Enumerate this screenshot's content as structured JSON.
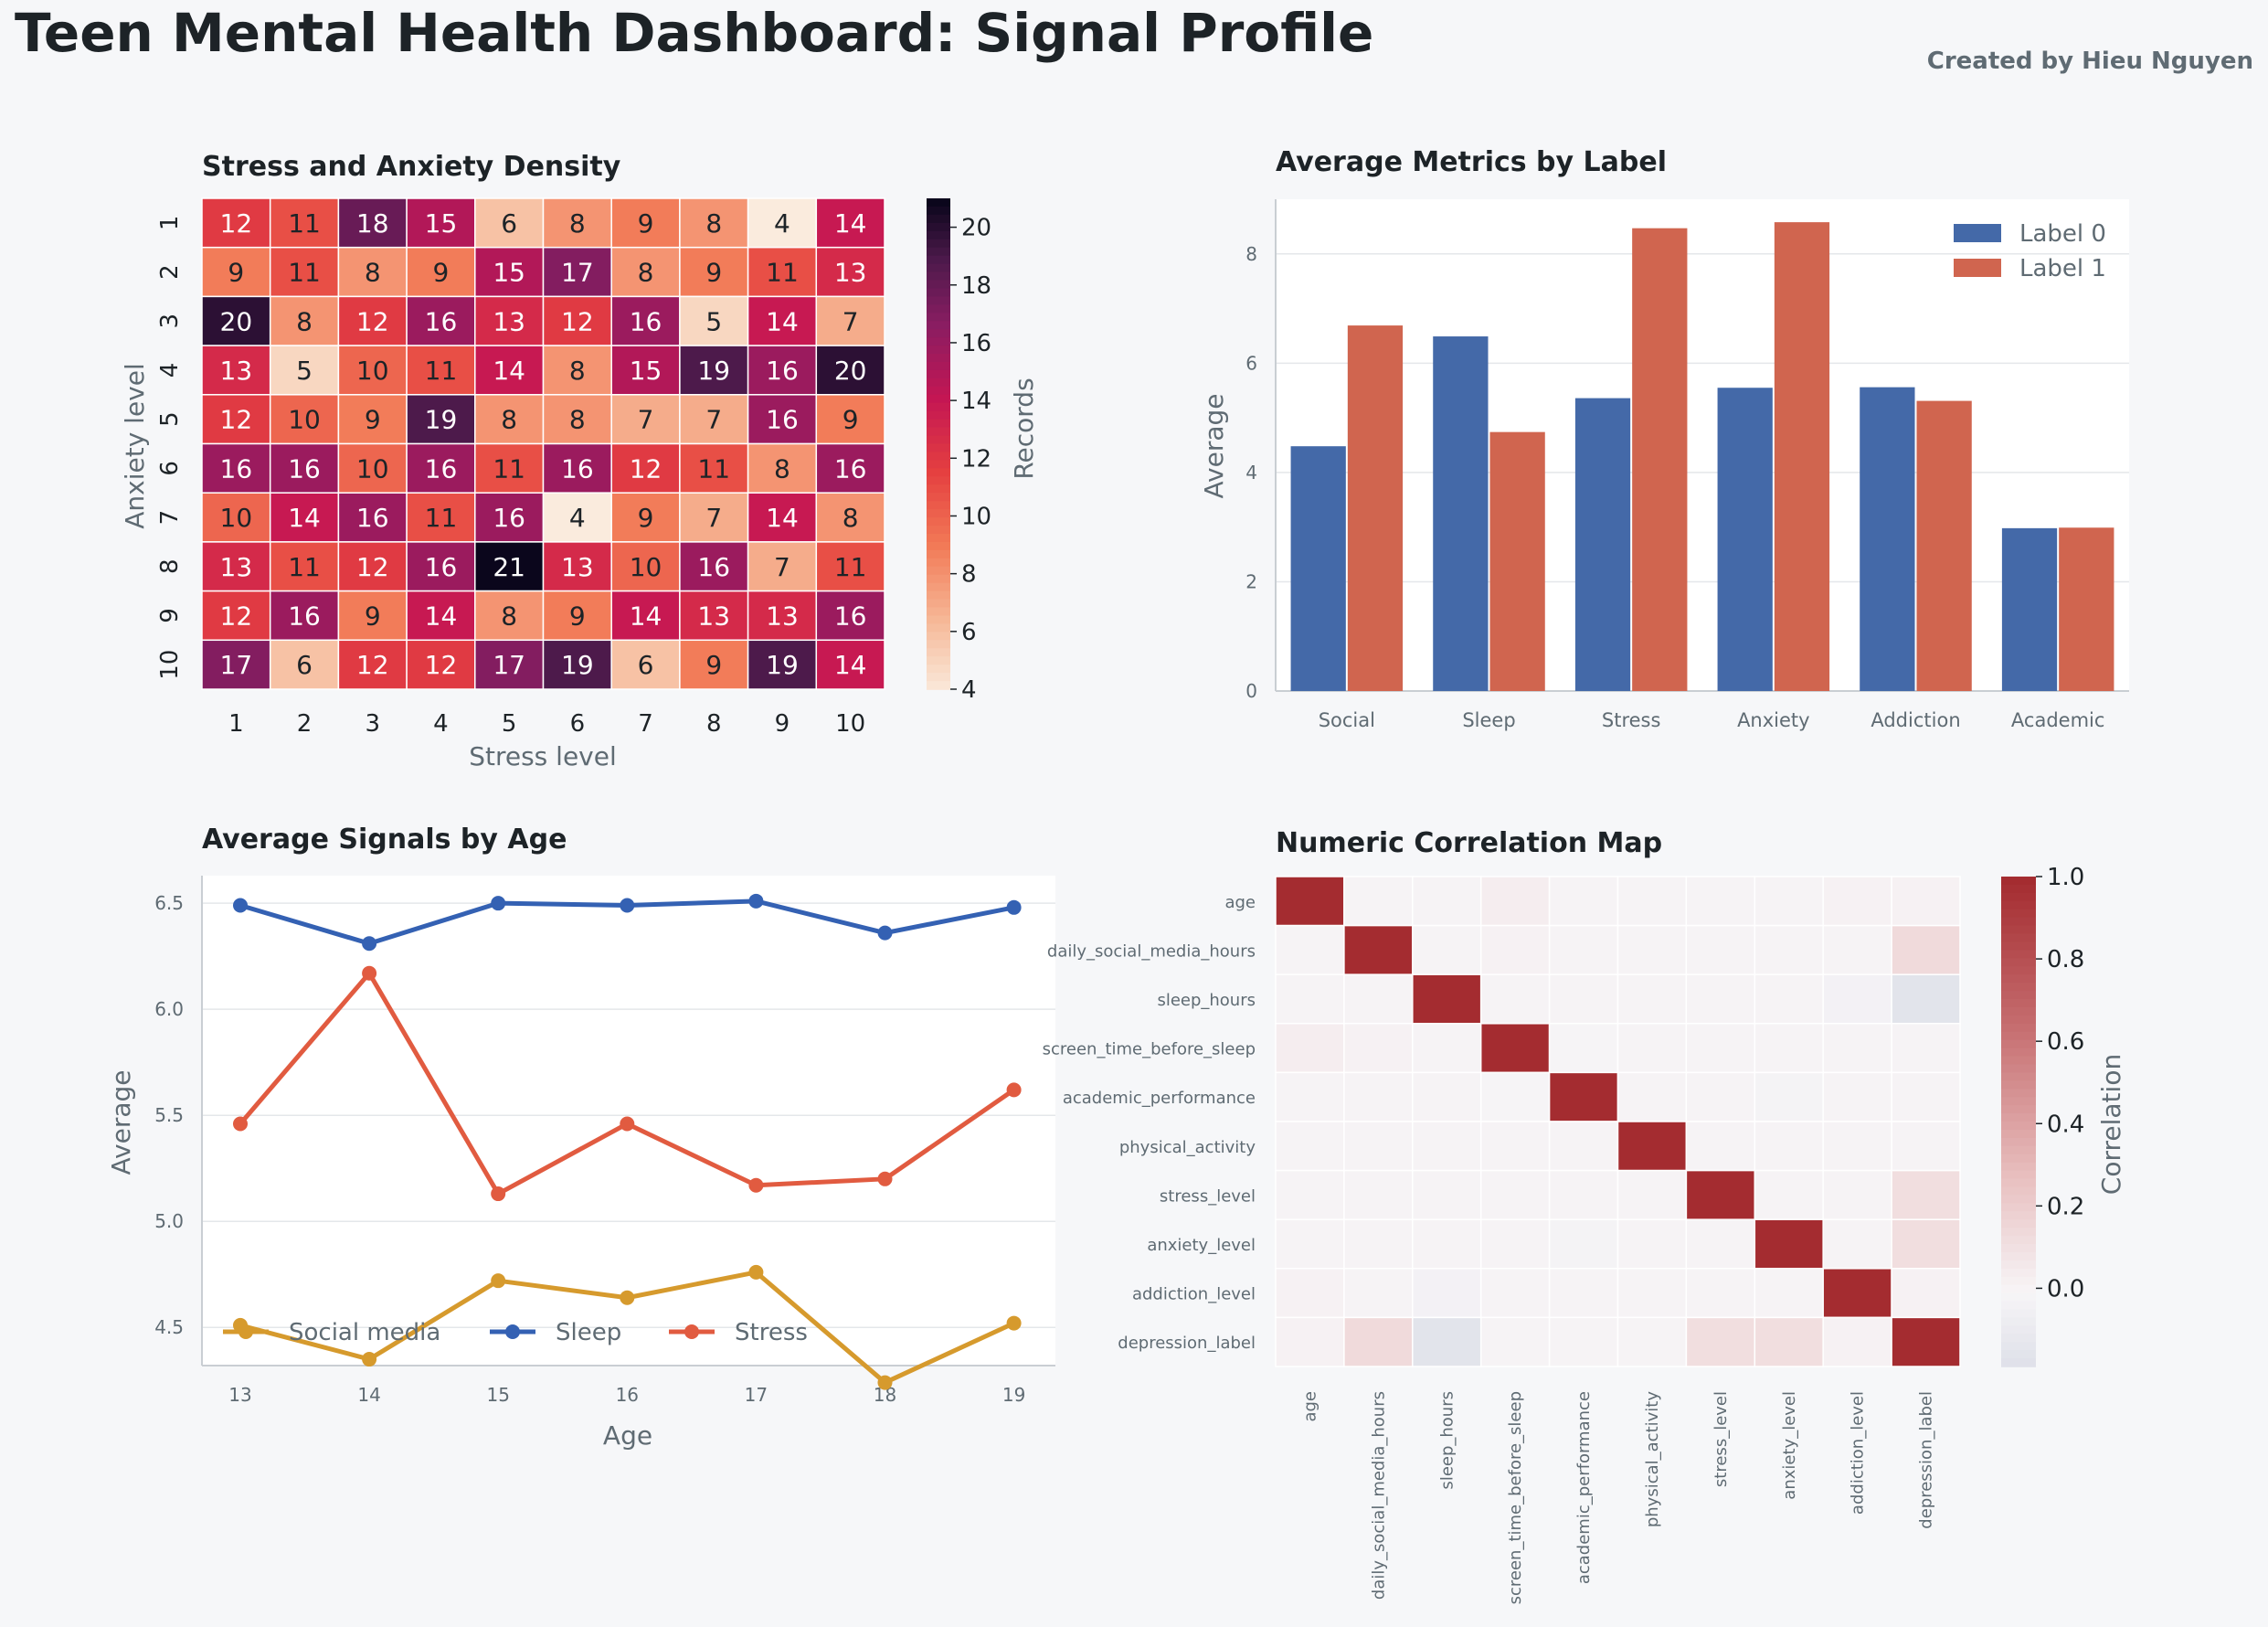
{
  "page": {
    "title": "Teen Mental Health Dashboard: Signal Profile",
    "credit": "Created by Hieu Nguyen"
  },
  "colors": {
    "background": "#f6f7f9",
    "text_dark": "#1d2327",
    "text_muted": "#5f6b73",
    "label0": "#4469a8",
    "label1": "#d0654f",
    "social": "#d69a2d",
    "sleep": "#3461b3",
    "stress": "#e15b40"
  },
  "chart_data": [
    {
      "id": "heatmap",
      "type": "heatmap",
      "title": "Stress and Anxiety Density",
      "xlabel": "Stress level",
      "ylabel": "Anxiety level",
      "x_ticks": [
        "1",
        "2",
        "3",
        "4",
        "5",
        "6",
        "7",
        "8",
        "9",
        "10"
      ],
      "y_ticks": [
        "1",
        "2",
        "3",
        "4",
        "5",
        "6",
        "7",
        "8",
        "9",
        "10"
      ],
      "values": [
        [
          12,
          11,
          18,
          15,
          6,
          8,
          9,
          8,
          4,
          14
        ],
        [
          9,
          11,
          8,
          9,
          15,
          17,
          8,
          9,
          11,
          13
        ],
        [
          20,
          8,
          12,
          16,
          13,
          12,
          16,
          5,
          14,
          7
        ],
        [
          13,
          5,
          10,
          11,
          14,
          8,
          15,
          19,
          16,
          20
        ],
        [
          12,
          10,
          9,
          19,
          8,
          8,
          7,
          7,
          16,
          9
        ],
        [
          16,
          16,
          10,
          16,
          11,
          16,
          12,
          11,
          8,
          16
        ],
        [
          10,
          14,
          16,
          11,
          16,
          4,
          9,
          7,
          14,
          8
        ],
        [
          13,
          11,
          12,
          16,
          21,
          13,
          10,
          16,
          7,
          11
        ],
        [
          12,
          16,
          9,
          14,
          8,
          9,
          14,
          13,
          13,
          16
        ],
        [
          17,
          6,
          12,
          12,
          17,
          19,
          6,
          9,
          19,
          14
        ]
      ],
      "colorbar": {
        "label": "Records",
        "min": 4,
        "max": 21,
        "ticks": [
          "4",
          "6",
          "8",
          "10",
          "12",
          "14",
          "16",
          "18",
          "20"
        ]
      }
    },
    {
      "id": "bars",
      "type": "bar",
      "title": "Average Metrics by Label",
      "xlabel": "",
      "ylabel": "Average",
      "ylim": [
        0,
        9
      ],
      "y_ticks": [
        "0",
        "2",
        "4",
        "6",
        "8"
      ],
      "categories": [
        "Social",
        "Sleep",
        "Stress",
        "Anxiety",
        "Addiction",
        "Academic"
      ],
      "series": [
        {
          "name": "Label 0",
          "values": [
            4.48,
            6.49,
            5.36,
            5.55,
            5.56,
            2.98
          ]
        },
        {
          "name": "Label 1",
          "values": [
            6.69,
            4.74,
            8.47,
            8.58,
            5.31,
            2.99
          ]
        }
      ],
      "legend_position": "top-right",
      "grid": true
    },
    {
      "id": "lines",
      "type": "line",
      "title": "Average Signals by Age",
      "xlabel": "Age",
      "ylabel": "Average",
      "x": [
        "13",
        "14",
        "15",
        "16",
        "17",
        "18",
        "19"
      ],
      "ylim": [
        4.32,
        6.63
      ],
      "y_ticks": [
        "4.5",
        "5.0",
        "5.5",
        "6.0",
        "6.5"
      ],
      "series": [
        {
          "name": "Social media",
          "values": [
            4.51,
            4.35,
            4.72,
            4.64,
            4.76,
            4.24,
            4.52
          ]
        },
        {
          "name": "Sleep",
          "values": [
            6.49,
            6.31,
            6.5,
            6.49,
            6.51,
            6.36,
            6.48
          ]
        },
        {
          "name": "Stress",
          "values": [
            5.46,
            6.17,
            5.13,
            5.46,
            5.17,
            5.2,
            5.62
          ]
        }
      ],
      "legend_position": "bottom-left",
      "grid": true
    },
    {
      "id": "corr",
      "type": "heatmap",
      "title": "Numeric Correlation Map",
      "labels": [
        "age",
        "daily_social_media_hours",
        "sleep_hours",
        "screen_time_before_sleep",
        "academic_performance",
        "physical_activity",
        "stress_level",
        "anxiety_level",
        "addiction_level",
        "depression_label"
      ],
      "values": [
        [
          1.0,
          0.01,
          0.01,
          0.04,
          0.01,
          0.01,
          0.01,
          0.01,
          0.02,
          0.02
        ],
        [
          0.01,
          1.0,
          0.01,
          0.02,
          0.01,
          0.01,
          0.01,
          0.01,
          0.01,
          0.14
        ],
        [
          0.01,
          0.01,
          1.0,
          0.01,
          0.01,
          0.01,
          0.01,
          0.01,
          -0.03,
          -0.15
        ],
        [
          0.04,
          0.02,
          0.01,
          1.0,
          -0.01,
          0.01,
          0.01,
          0.01,
          0.01,
          0.01
        ],
        [
          0.01,
          0.01,
          0.01,
          -0.01,
          1.0,
          0.01,
          0.01,
          -0.02,
          0.01,
          0.01
        ],
        [
          0.01,
          0.01,
          0.01,
          0.01,
          0.01,
          1.0,
          0.01,
          0.01,
          0.01,
          0.01
        ],
        [
          0.01,
          0.01,
          0.01,
          0.01,
          0.01,
          0.01,
          1.0,
          0.01,
          0.01,
          0.12
        ],
        [
          0.01,
          0.01,
          0.01,
          0.01,
          -0.02,
          0.01,
          0.01,
          1.0,
          0.01,
          0.12
        ],
        [
          0.02,
          0.01,
          -0.03,
          0.01,
          0.01,
          0.01,
          0.01,
          0.01,
          1.0,
          0.02
        ],
        [
          0.02,
          0.14,
          -0.15,
          0.01,
          0.01,
          0.01,
          0.12,
          0.12,
          0.02,
          1.0
        ]
      ],
      "colorbar": {
        "label": "Correlation",
        "min": -0.19,
        "max": 1.0,
        "ticks": [
          "0.0",
          "0.2",
          "0.4",
          "0.6",
          "0.8",
          "1.0"
        ]
      }
    }
  ]
}
